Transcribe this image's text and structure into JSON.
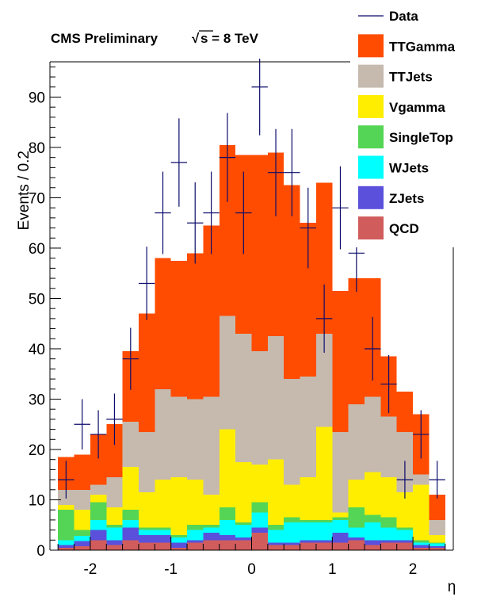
{
  "chart_data": {
    "type": "bar",
    "stacked": true,
    "title": "CMS Preliminary",
    "title_energy": "s = 8 TeV",
    "title_sqrt_symbol": "√",
    "xlabel": "η",
    "ylabel": "Events / 0.2",
    "xlim": [
      -2.5,
      2.5
    ],
    "ylim": [
      0,
      97
    ],
    "bin_width": 0.2,
    "x_ticks": [
      -2,
      -1,
      0,
      1,
      2
    ],
    "x_tick_labels": [
      "-2",
      "-1",
      "0",
      "1",
      "2"
    ],
    "y_ticks": [
      0,
      10,
      20,
      30,
      40,
      50,
      60,
      70,
      80,
      90
    ],
    "y_tick_labels": [
      "0",
      "10",
      "20",
      "30",
      "40",
      "50",
      "60",
      "70",
      "80",
      "90"
    ],
    "bin_edges": [
      -2.4,
      -2.2,
      -2.0,
      -1.8,
      -1.6,
      -1.4,
      -1.2,
      -1.0,
      -0.8,
      -0.6,
      -0.4,
      -0.2,
      0.0,
      0.2,
      0.4,
      0.6,
      0.8,
      1.0,
      1.2,
      1.4,
      1.6,
      1.8,
      2.0,
      2.2,
      2.4
    ],
    "series": [
      {
        "name": "QCD",
        "color": "#d15c5c",
        "values": [
          0.5,
          0.8,
          2.0,
          1.0,
          2.0,
          1.5,
          1.5,
          0.5,
          1.5,
          2.0,
          2.0,
          2.0,
          3.5,
          1.0,
          1.0,
          1.5,
          1.5,
          1.5,
          2.0,
          1.0,
          1.5,
          1.5,
          0.5,
          0.5
        ]
      },
      {
        "name": "ZJets",
        "color": "#5a50dc",
        "values": [
          0.5,
          1.0,
          2.0,
          1.0,
          2.5,
          1.5,
          1.5,
          1.0,
          0.5,
          1.5,
          1.0,
          0.5,
          1.0,
          0.5,
          0.5,
          0.5,
          0.5,
          2.0,
          0.5,
          1.0,
          0.5,
          0.5,
          0.5,
          0.3
        ]
      },
      {
        "name": "WJets",
        "color": "#00ffff",
        "values": [
          1.0,
          1.0,
          2.0,
          2.5,
          1.5,
          1.0,
          1.0,
          1.0,
          2.0,
          1.0,
          3.0,
          2.5,
          3.0,
          2.5,
          4.0,
          3.5,
          3.5,
          2.5,
          2.0,
          3.5,
          2.5,
          2.0,
          0.5,
          0.5
        ]
      },
      {
        "name": "SingleTop",
        "color": "#55d555",
        "values": [
          6.0,
          1.2,
          3.5,
          0.5,
          2.0,
          0.5,
          0.5,
          0.5,
          1.0,
          0.5,
          2.5,
          0.5,
          2.0,
          1.0,
          1.0,
          0.5,
          0.5,
          0.5,
          4.0,
          1.5,
          2.0,
          0.5,
          0.5,
          0.2
        ]
      },
      {
        "name": "Vgamma",
        "color": "#ffee00",
        "values": [
          1.0,
          4.0,
          1.5,
          3.5,
          8.5,
          7.0,
          9.5,
          11.5,
          9.0,
          6.0,
          15.5,
          12.0,
          7.5,
          13.0,
          6.5,
          8.5,
          18.5,
          1.0,
          5.5,
          8.5,
          8.0,
          7.0,
          11.0,
          1.5
        ]
      },
      {
        "name": "TTJets",
        "color": "#c6baaf",
        "values": [
          3.0,
          4.0,
          2.0,
          6.0,
          9.0,
          12.0,
          18.0,
          16.0,
          16.0,
          19.5,
          22.5,
          25.5,
          22.5,
          24.5,
          21.0,
          20.0,
          18.5,
          16.0,
          15.0,
          15.0,
          12.0,
          12.0,
          2.0,
          3.0
        ]
      },
      {
        "name": "TTGamma",
        "color": "#ff4c00",
        "values": [
          6.5,
          7.0,
          10.0,
          10.5,
          14.0,
          23.5,
          26.0,
          27.0,
          29.0,
          34.0,
          34.0,
          35.5,
          39.0,
          36.5,
          38.5,
          30.5,
          30.0,
          28.0,
          25.0,
          23.5,
          12.0,
          8.0,
          12.0,
          5.0
        ]
      }
    ],
    "data_series": {
      "name": "Data",
      "color": "#0b0b6b",
      "x": [
        -2.3,
        -2.1,
        -1.9,
        -1.7,
        -1.5,
        -1.3,
        -1.1,
        -0.9,
        -0.7,
        -0.5,
        -0.3,
        -0.1,
        0.1,
        0.3,
        0.5,
        0.7,
        0.9,
        1.1,
        1.3,
        1.5,
        1.7,
        1.9,
        2.1,
        2.3
      ],
      "y": [
        14,
        25,
        23,
        26,
        38,
        53,
        67,
        77,
        65,
        67,
        78,
        67,
        92,
        75,
        75,
        64,
        46,
        68,
        59,
        40,
        33,
        14,
        23,
        14
      ]
    },
    "legend_position": "top-right",
    "legend": [
      "Data",
      "TTGamma",
      "TTJets",
      "Vgamma",
      "SingleTop",
      "WJets",
      "ZJets",
      "QCD"
    ],
    "grid": false
  }
}
